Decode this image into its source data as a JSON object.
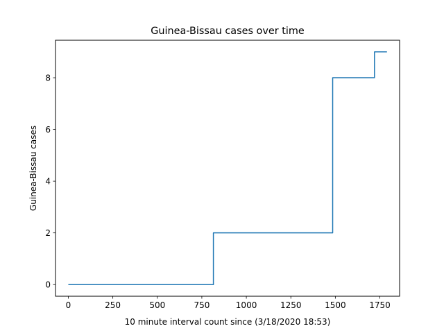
{
  "chart_data": {
    "type": "line",
    "title": "Guinea-Bissau cases over time",
    "xlabel": "10 minute interval count since (3/18/2020 18:53)",
    "ylabel": "Guinea-Bissau cases",
    "xlim": [
      -72,
      1861
    ],
    "ylim": [
      -0.45,
      9.45
    ],
    "xticks": [
      0,
      250,
      500,
      750,
      1000,
      1250,
      1500,
      1750
    ],
    "yticks": [
      0,
      2,
      4,
      6,
      8
    ],
    "grid": false,
    "line_color": "#1f77b4",
    "series": [
      {
        "step": "post",
        "x": [
          0,
          815,
          1485,
          1720,
          1790
        ],
        "y": [
          0,
          2,
          8,
          9,
          9
        ]
      }
    ]
  }
}
